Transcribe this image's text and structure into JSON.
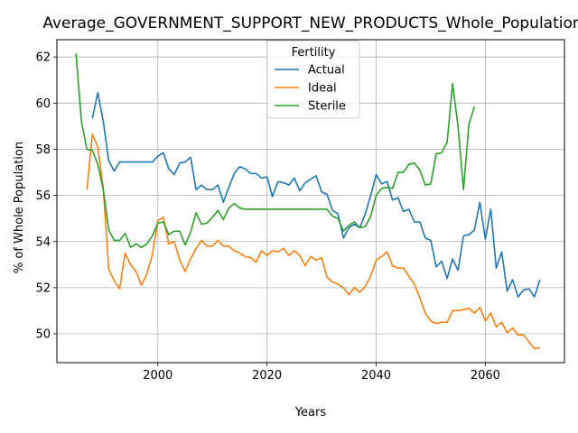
{
  "chart_data": {
    "type": "line",
    "title": "Average_GOVERNMENT_SUPPORT_NEW_PRODUCTS_Whole_Population",
    "xlabel": "Years",
    "ylabel": "% of Whole Population",
    "xlim": [
      1981.5,
      2074.5
    ],
    "ylim": [
      48.75,
      62.75
    ],
    "xticks": [
      2000,
      2020,
      2040,
      2060
    ],
    "yticks": [
      50,
      52,
      54,
      56,
      58,
      60,
      62
    ],
    "grid": true,
    "legend": {
      "title": "Fertility",
      "position": "upper-center"
    },
    "series": [
      {
        "name": "Actual",
        "color": "#1f77b4",
        "x": [
          1988,
          1989,
          1990,
          1991,
          1992,
          1993,
          1994,
          1995,
          1996,
          1997,
          1998,
          1999,
          2000,
          2001,
          2002,
          2003,
          2004,
          2005,
          2006,
          2007,
          2008,
          2009,
          2010,
          2011,
          2012,
          2013,
          2014,
          2015,
          2016,
          2017,
          2018,
          2019,
          2020,
          2021,
          2022,
          2023,
          2024,
          2025,
          2026,
          2027,
          2028,
          2029,
          2030,
          2031,
          2032,
          2033,
          2034,
          2035,
          2036,
          2037,
          2038,
          2039,
          2040,
          2041,
          2042,
          2043,
          2044,
          2045,
          2046,
          2047,
          2048,
          2049,
          2050,
          2051,
          2052,
          2053,
          2054,
          2055,
          2056,
          2057,
          2058,
          2059,
          2060,
          2061,
          2062,
          2063,
          2064,
          2065,
          2066,
          2067,
          2068,
          2069,
          2070
        ],
        "values": [
          59.35,
          60.45,
          59.2,
          57.5,
          57.05,
          57.45,
          57.45,
          57.45,
          57.45,
          57.45,
          57.45,
          57.45,
          57.7,
          57.85,
          57.15,
          56.9,
          57.4,
          57.45,
          57.65,
          56.25,
          56.45,
          56.25,
          56.25,
          56.45,
          55.7,
          56.35,
          56.95,
          57.25,
          57.15,
          56.95,
          56.95,
          56.75,
          56.8,
          55.95,
          56.6,
          56.55,
          56.45,
          56.75,
          56.2,
          56.55,
          56.7,
          56.85,
          56.15,
          56.05,
          55.35,
          55.2,
          54.15,
          54.6,
          54.75,
          54.6,
          55.2,
          56.0,
          56.9,
          56.5,
          56.6,
          55.8,
          55.9,
          55.3,
          55.4,
          54.85,
          54.85,
          54.15,
          54.05,
          52.9,
          53.15,
          52.4,
          53.25,
          52.75,
          54.25,
          54.3,
          54.5,
          55.7,
          54.1,
          55.4,
          52.85,
          53.55,
          51.85,
          52.35,
          51.6,
          51.9,
          51.95,
          51.6,
          52.35
        ]
      },
      {
        "name": "Ideal",
        "color": "#ff7f0e",
        "x": [
          1987,
          1988,
          1989,
          1990,
          1991,
          1992,
          1993,
          1994,
          1995,
          1996,
          1997,
          1998,
          1999,
          2000,
          2001,
          2002,
          2003,
          2004,
          2005,
          2006,
          2007,
          2008,
          2009,
          2010,
          2011,
          2012,
          2013,
          2014,
          2015,
          2016,
          2017,
          2018,
          2019,
          2020,
          2021,
          2022,
          2023,
          2024,
          2025,
          2026,
          2027,
          2028,
          2029,
          2030,
          2031,
          2032,
          2033,
          2034,
          2035,
          2036,
          2037,
          2038,
          2039,
          2040,
          2041,
          2042,
          2043,
          2044,
          2045,
          2046,
          2047,
          2048,
          2049,
          2050,
          2051,
          2052,
          2053,
          2054,
          2055,
          2056,
          2057,
          2058,
          2059,
          2060,
          2061,
          2062,
          2063,
          2064,
          2065,
          2066,
          2067,
          2068,
          2069,
          2070
        ],
        "values": [
          56.25,
          58.65,
          58.1,
          56.3,
          52.8,
          52.3,
          51.95,
          53.5,
          53.0,
          52.7,
          52.1,
          52.6,
          53.45,
          54.9,
          55.05,
          53.9,
          54.0,
          53.2,
          52.7,
          53.25,
          53.7,
          54.05,
          53.8,
          53.8,
          54.05,
          53.8,
          53.8,
          53.6,
          53.5,
          53.35,
          53.3,
          53.1,
          53.6,
          53.4,
          53.6,
          53.55,
          53.7,
          53.4,
          53.6,
          53.4,
          52.95,
          53.35,
          53.2,
          53.3,
          52.45,
          52.25,
          52.15,
          52.0,
          51.7,
          52.0,
          51.8,
          52.05,
          52.5,
          53.2,
          53.35,
          53.55,
          52.95,
          52.85,
          52.85,
          52.5,
          52.15,
          51.55,
          50.9,
          50.55,
          50.45,
          50.5,
          50.5,
          51.0,
          51.0,
          51.05,
          51.1,
          50.9,
          51.15,
          50.55,
          50.9,
          50.3,
          50.5,
          50.05,
          50.25,
          49.95,
          49.95,
          49.65,
          49.35,
          49.4
        ]
      },
      {
        "name": "Sterile",
        "color": "#2ca02c",
        "x": [
          1985,
          1986,
          1987,
          1988,
          1989,
          1990,
          1991,
          1992,
          1993,
          1994,
          1995,
          1996,
          1997,
          1998,
          1999,
          2000,
          2001,
          2002,
          2003,
          2004,
          2005,
          2006,
          2007,
          2008,
          2009,
          2010,
          2011,
          2012,
          2013,
          2014,
          2015,
          2016,
          2017,
          2018,
          2019,
          2020,
          2021,
          2022,
          2023,
          2024,
          2025,
          2026,
          2027,
          2028,
          2029,
          2030,
          2031,
          2032,
          2033,
          2034,
          2035,
          2036,
          2037,
          2038,
          2039,
          2040,
          2041,
          2042,
          2043,
          2044,
          2045,
          2046,
          2047,
          2048,
          2049,
          2050,
          2051,
          2052,
          2053,
          2054,
          2055,
          2056,
          2057,
          2058
        ],
        "values": [
          62.15,
          59.2,
          58.0,
          57.95,
          57.35,
          56.25,
          54.5,
          54.05,
          54.05,
          54.35,
          53.75,
          53.9,
          53.75,
          53.9,
          54.25,
          54.8,
          54.85,
          54.3,
          54.45,
          54.45,
          53.85,
          54.4,
          55.25,
          54.75,
          54.8,
          55.05,
          55.35,
          54.95,
          55.45,
          55.65,
          55.45,
          55.4,
          55.4,
          55.4,
          55.4,
          55.4,
          55.4,
          55.4,
          55.4,
          55.4,
          55.4,
          55.4,
          55.4,
          55.4,
          55.4,
          55.4,
          55.4,
          55.1,
          55.0,
          54.45,
          54.7,
          54.85,
          54.6,
          54.65,
          55.1,
          56.0,
          56.3,
          56.35,
          56.3,
          57.0,
          57.0,
          57.35,
          57.4,
          57.1,
          56.45,
          56.5,
          57.8,
          57.85,
          58.3,
          60.85,
          59.0,
          56.25,
          59.1,
          59.85
        ]
      }
    ]
  }
}
